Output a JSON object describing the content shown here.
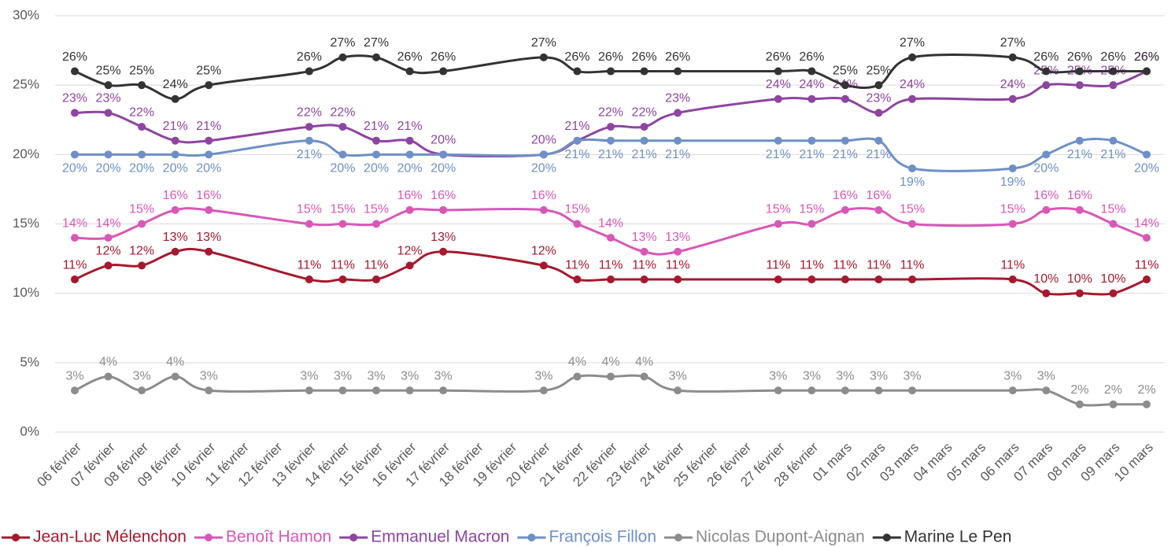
{
  "chart_data": {
    "type": "line",
    "categories": [
      "06 février",
      "07 février",
      "08 février",
      "09 février",
      "10 février",
      "11 février",
      "12 février",
      "13 février",
      "14 février",
      "15 février",
      "16 février",
      "17 février",
      "18 février",
      "19 février",
      "20 février",
      "21 février",
      "22 février",
      "23 février",
      "24 février",
      "25 février",
      "26 février",
      "27 février",
      "28 février",
      "01 mars",
      "02 mars",
      "03 mars",
      "04 mars",
      "05 mars",
      "06 mars",
      "07 mars",
      "08 mars",
      "09 mars",
      "10 mars"
    ],
    "ylim": [
      0,
      30
    ],
    "yticks": [
      {
        "value": 0,
        "label": "0%"
      },
      {
        "value": 5,
        "label": "5%"
      },
      {
        "value": 10,
        "label": "10%"
      },
      {
        "value": 15,
        "label": "15%"
      },
      {
        "value": 20,
        "label": "20%"
      },
      {
        "value": 25,
        "label": "25%"
      },
      {
        "value": 30,
        "label": "30%"
      }
    ],
    "grid": true,
    "legend": "bottom",
    "series": [
      {
        "name": "Jean-Luc Mélenchon",
        "color": "#a6192e",
        "values": [
          11,
          12,
          12,
          13,
          13,
          null,
          null,
          11,
          11,
          11,
          12,
          13,
          null,
          null,
          12,
          11,
          11,
          11,
          11,
          null,
          null,
          11,
          11,
          11,
          11,
          11,
          null,
          null,
          11,
          10,
          10,
          10,
          11
        ],
        "value_labels": [
          "11%",
          "12%",
          "12%",
          "13%",
          "13%",
          null,
          null,
          "11%",
          "11%",
          "11%",
          "12%",
          "13%",
          null,
          null,
          "12%",
          "11%",
          "11%",
          "11%",
          "11%",
          null,
          null,
          "11%",
          "11%",
          "11%",
          "11%",
          "11%",
          null,
          null,
          "11%",
          "10%",
          "10%",
          "10%",
          "11%"
        ]
      },
      {
        "name": "Benoît Hamon",
        "color": "#d957b7",
        "values": [
          14,
          14,
          15,
          16,
          16,
          null,
          null,
          15,
          15,
          15,
          16,
          16,
          null,
          null,
          16,
          15,
          14,
          13,
          13,
          null,
          null,
          15,
          15,
          16,
          16,
          15,
          null,
          null,
          15,
          16,
          16,
          15,
          14
        ],
        "value_labels": [
          "14%",
          "14%",
          "15%",
          "16%",
          "16%",
          null,
          null,
          "15%",
          "15%",
          "15%",
          "16%",
          "16%",
          null,
          null,
          "16%",
          "15%",
          "14%",
          "13%",
          "13%",
          null,
          null,
          "15%",
          "15%",
          "16%",
          "16%",
          "15%",
          null,
          null,
          "15%",
          "16%",
          "16%",
          "15%",
          "14%"
        ]
      },
      {
        "name": "Emmanuel Macron",
        "color": "#8e44a0",
        "values": [
          23,
          23,
          22,
          21,
          21,
          null,
          null,
          22,
          22,
          21,
          21,
          20,
          null,
          null,
          20,
          21,
          22,
          22,
          23,
          null,
          null,
          24,
          24,
          24,
          23,
          24,
          null,
          null,
          24,
          25,
          25,
          25,
          26
        ],
        "value_labels": [
          "23%",
          "23%",
          "22%",
          "21%",
          "21%",
          null,
          null,
          "22%",
          "22%",
          "21%",
          "21%",
          "20%",
          null,
          null,
          "20%",
          "21%",
          "22%",
          "22%",
          "23%",
          null,
          null,
          "24%",
          "24%",
          "24%",
          "23%",
          "24%",
          null,
          null,
          "24%",
          "25%",
          "25%",
          "25%",
          "26%"
        ]
      },
      {
        "name": "François Fillon",
        "color": "#6f8fc7",
        "values": [
          20,
          20,
          20,
          20,
          20,
          null,
          null,
          21,
          20,
          20,
          20,
          20,
          null,
          null,
          20,
          21,
          21,
          21,
          21,
          null,
          null,
          21,
          21,
          21,
          21,
          19,
          null,
          null,
          19,
          20,
          21,
          21,
          20
        ],
        "value_labels": [
          "20%",
          "20%",
          "20%",
          "20%",
          "20%",
          null,
          null,
          "21%",
          "20%",
          "20%",
          "20%",
          "20%",
          null,
          null,
          "20%",
          "21%",
          "21%",
          "21%",
          "21%",
          null,
          null,
          "21%",
          "21%",
          "21%",
          "21%",
          "19%",
          null,
          null,
          "19%",
          "20%",
          "21%",
          "21%",
          "20%"
        ]
      },
      {
        "name": "Nicolas Dupont-Aignan",
        "color": "#8c8c8c",
        "values": [
          3,
          4,
          3,
          4,
          3,
          null,
          null,
          3,
          3,
          3,
          3,
          3,
          null,
          null,
          3,
          4,
          4,
          4,
          3,
          null,
          null,
          3,
          3,
          3,
          3,
          3,
          null,
          null,
          3,
          3,
          2,
          2,
          2
        ],
        "value_labels": [
          "3%",
          "4%",
          "3%",
          "4%",
          "3%",
          null,
          null,
          "3%",
          "3%",
          "3%",
          "3%",
          "3%",
          null,
          null,
          "3%",
          "4%",
          "4%",
          "4%",
          "3%",
          null,
          null,
          "3%",
          "3%",
          "3%",
          "3%",
          "3%",
          null,
          null,
          "3%",
          "3%",
          "2%",
          "2%",
          "2%"
        ]
      },
      {
        "name": "Marine Le Pen",
        "color": "#333333",
        "values": [
          26,
          25,
          25,
          24,
          25,
          null,
          null,
          26,
          27,
          27,
          26,
          26,
          null,
          null,
          27,
          26,
          26,
          26,
          26,
          null,
          null,
          26,
          26,
          25,
          25,
          27,
          null,
          null,
          27,
          26,
          26,
          26,
          26
        ],
        "value_labels": [
          "26%",
          "25%",
          "25%",
          "24%",
          "25%",
          null,
          null,
          "26%",
          "27%",
          "27%",
          "26%",
          "26%",
          null,
          null,
          "27%",
          "26%",
          "26%",
          "26%",
          "26%",
          null,
          null,
          "26%",
          "26%",
          "25%",
          "25%",
          "27%",
          null,
          null,
          "27%",
          "26%",
          "26%",
          "26%",
          "26%"
        ]
      }
    ]
  }
}
